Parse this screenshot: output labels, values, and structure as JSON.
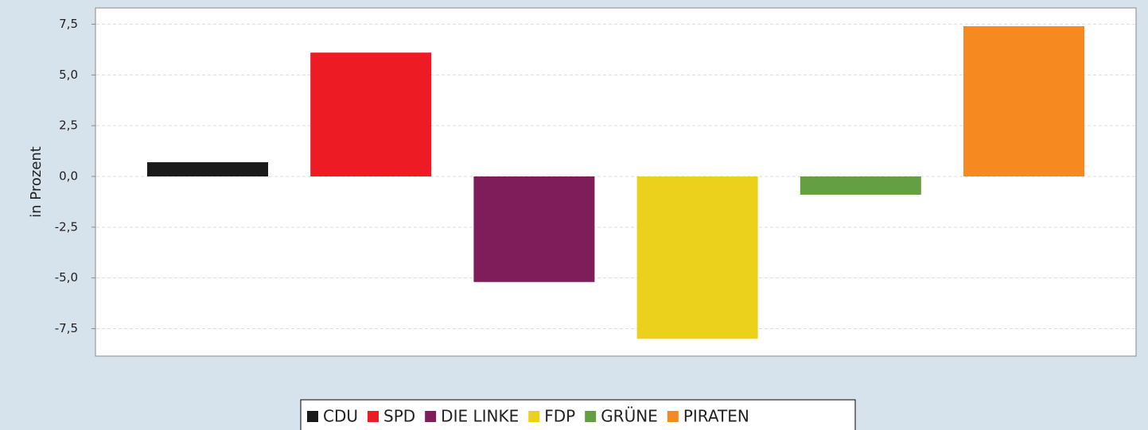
{
  "chart_data": {
    "type": "bar",
    "y_label": "in Prozent",
    "series": [
      {
        "name": "CDU",
        "color": "#1a1a1a",
        "values": [
          0.7
        ]
      },
      {
        "name": "SPD",
        "color": "#ed1c24",
        "values": [
          6.1
        ]
      },
      {
        "name": "DIE LINKE",
        "color": "#7f1d5a",
        "values": [
          -5.2
        ]
      },
      {
        "name": "FDP",
        "color": "#ebd11c",
        "values": [
          -8.0
        ]
      },
      {
        "name": "GRÜNE",
        "color": "#64a043",
        "values": [
          -0.9
        ]
      },
      {
        "name": "PIRATEN",
        "color": "#f68920",
        "values": [
          7.4
        ]
      }
    ],
    "ylim": [
      -8.85,
      8.3
    ],
    "yticks": [
      {
        "value": -7.5,
        "label": "-7,5"
      },
      {
        "value": -5,
        "label": "-5,0"
      },
      {
        "value": -2.5,
        "label": "-2,5"
      },
      {
        "value": 0,
        "label": "0,0"
      },
      {
        "value": 2.5,
        "label": "2,5"
      },
      {
        "value": 5,
        "label": "5,0"
      },
      {
        "value": 7.5,
        "label": "7,5"
      }
    ],
    "grid": true
  }
}
